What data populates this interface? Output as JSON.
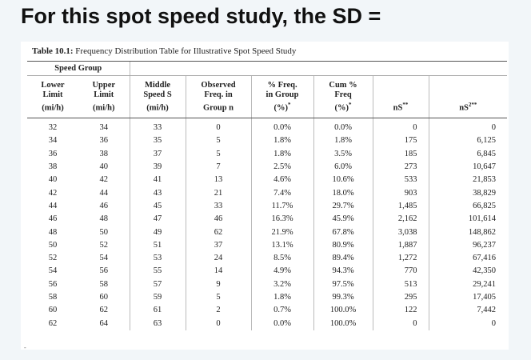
{
  "heading": "For this spot speed study, the SD =",
  "table": {
    "caption_label": "Table 10.1:",
    "caption_text": " Frequency Distribution Table for Illustrative Spot Speed Study",
    "group_header": "Speed Group",
    "columns": [
      {
        "line1": "Lower",
        "line2": "Limit",
        "line3": "(mi/h)",
        "sup": ""
      },
      {
        "line1": "Upper",
        "line2": "Limit",
        "line3": "(mi/h)",
        "sup": ""
      },
      {
        "line1": "Middle",
        "line2": "Speed S",
        "line3": "(mi/h)",
        "sup": ""
      },
      {
        "line1": "Observed",
        "line2": "Freq. in",
        "line3": "Group n",
        "sup": ""
      },
      {
        "line1": "% Freq.",
        "line2": "in Group",
        "line3": "(%)",
        "sup": "*"
      },
      {
        "line1": "Cum %",
        "line2": "Freq",
        "line3": "(%)",
        "sup": "*"
      },
      {
        "line1": "",
        "line2": "",
        "line3": "nS",
        "sup": "**"
      },
      {
        "line1": "",
        "line2": "",
        "line3": "nS",
        "sup": "2**"
      }
    ],
    "rows": [
      [
        "32",
        "34",
        "33",
        "0",
        "0.0%",
        "0.0%",
        "0",
        "0"
      ],
      [
        "34",
        "36",
        "35",
        "5",
        "1.8%",
        "1.8%",
        "175",
        "6,125"
      ],
      [
        "36",
        "38",
        "37",
        "5",
        "1.8%",
        "3.5%",
        "185",
        "6,845"
      ],
      [
        "38",
        "40",
        "39",
        "7",
        "2.5%",
        "6.0%",
        "273",
        "10,647"
      ],
      [
        "40",
        "42",
        "41",
        "13",
        "4.6%",
        "10.6%",
        "533",
        "21,853"
      ],
      [
        "42",
        "44",
        "43",
        "21",
        "7.4%",
        "18.0%",
        "903",
        "38,829"
      ],
      [
        "44",
        "46",
        "45",
        "33",
        "11.7%",
        "29.7%",
        "1,485",
        "66,825"
      ],
      [
        "46",
        "48",
        "47",
        "46",
        "16.3%",
        "45.9%",
        "2,162",
        "101,614"
      ],
      [
        "48",
        "50",
        "49",
        "62",
        "21.9%",
        "67.8%",
        "3,038",
        "148,862"
      ],
      [
        "50",
        "52",
        "51",
        "37",
        "13.1%",
        "80.9%",
        "1,887",
        "96,237"
      ],
      [
        "52",
        "54",
        "53",
        "24",
        "8.5%",
        "89.4%",
        "1,272",
        "67,416"
      ],
      [
        "54",
        "56",
        "55",
        "14",
        "4.9%",
        "94.3%",
        "770",
        "42,350"
      ],
      [
        "56",
        "58",
        "57",
        "9",
        "3.2%",
        "97.5%",
        "513",
        "29,241"
      ],
      [
        "58",
        "60",
        "59",
        "5",
        "1.8%",
        "99.3%",
        "295",
        "17,405"
      ],
      [
        "60",
        "62",
        "61",
        "2",
        "0.7%",
        "100.0%",
        "122",
        "7,442"
      ],
      [
        "62",
        "64",
        "63",
        "0",
        "0.0%",
        "100.0%",
        "0",
        "0"
      ]
    ]
  }
}
